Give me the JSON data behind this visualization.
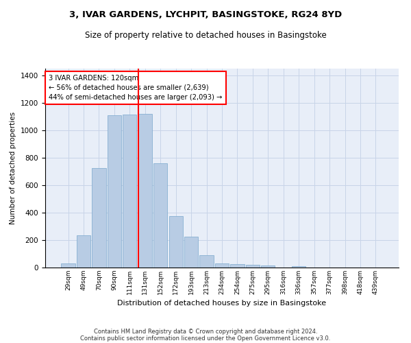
{
  "title": "3, IVAR GARDENS, LYCHPIT, BASINGSTOKE, RG24 8YD",
  "subtitle": "Size of property relative to detached houses in Basingstoke",
  "xlabel": "Distribution of detached houses by size in Basingstoke",
  "ylabel": "Number of detached properties",
  "footnote1": "Contains HM Land Registry data © Crown copyright and database right 2024.",
  "footnote2": "Contains public sector information licensed under the Open Government Licence v3.0.",
  "bar_labels": [
    "29sqm",
    "49sqm",
    "70sqm",
    "90sqm",
    "111sqm",
    "131sqm",
    "152sqm",
    "172sqm",
    "193sqm",
    "213sqm",
    "234sqm",
    "254sqm",
    "275sqm",
    "295sqm",
    "316sqm",
    "336sqm",
    "357sqm",
    "377sqm",
    "398sqm",
    "418sqm",
    "439sqm"
  ],
  "bar_values": [
    30,
    235,
    725,
    1110,
    1115,
    1120,
    760,
    375,
    225,
    90,
    30,
    25,
    20,
    15,
    0,
    10,
    0,
    0,
    0,
    0,
    0
  ],
  "bar_color": "#b8cce4",
  "bar_edge_color": "#7aa8cc",
  "grid_color": "#c8d4e8",
  "bg_color": "#e8eef8",
  "vline_x": 4.55,
  "vline_color": "red",
  "annotation_text": "3 IVAR GARDENS: 120sqm\n← 56% of detached houses are smaller (2,639)\n44% of semi-detached houses are larger (2,093) →",
  "annotation_box_color": "white",
  "annotation_box_edge": "red",
  "ylim": [
    0,
    1450
  ],
  "yticks": [
    0,
    200,
    400,
    600,
    800,
    1000,
    1200,
    1400
  ]
}
